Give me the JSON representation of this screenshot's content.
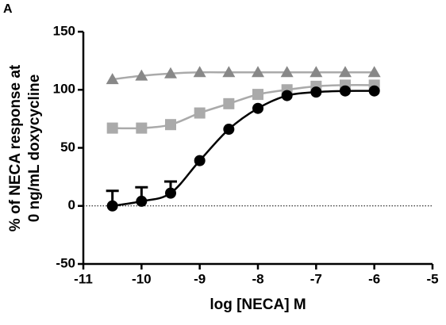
{
  "panel_label": "A",
  "chart_data": {
    "type": "line",
    "xlabel": "log [NECA] M",
    "ylabel": [
      "% of NECA response at",
      "0 ng/mL doxycycline"
    ],
    "x": [
      -10.5,
      -10,
      -9.5,
      -9,
      -8.5,
      -8,
      -7.5,
      -7,
      -6.5,
      -6
    ],
    "xlim": [
      -11,
      -5
    ],
    "xticks": [
      -11,
      -10,
      -9,
      -8,
      -7,
      -6,
      -5
    ],
    "ylim": [
      -50,
      150
    ],
    "yticks": [
      -50,
      0,
      50,
      100,
      150
    ],
    "reference_line": 0,
    "series": [
      {
        "color": "#888888",
        "line_color": "#aaaaaa",
        "marker": "triangle",
        "values": [
          109,
          112,
          114,
          115,
          115,
          115,
          115,
          115,
          115,
          115
        ]
      },
      {
        "color": "#aaaaaa",
        "line_color": "#aaaaaa",
        "marker": "square",
        "values": [
          67,
          67,
          70,
          80,
          88,
          96,
          100,
          103,
          104,
          104
        ]
      },
      {
        "color": "#000000",
        "line_color": "#000000",
        "marker": "circle",
        "values": [
          0,
          4,
          11,
          39,
          66,
          84,
          95,
          98,
          99,
          99
        ],
        "errors": [
          13,
          12,
          10,
          null,
          null,
          null,
          null,
          null,
          null,
          null
        ]
      }
    ]
  }
}
